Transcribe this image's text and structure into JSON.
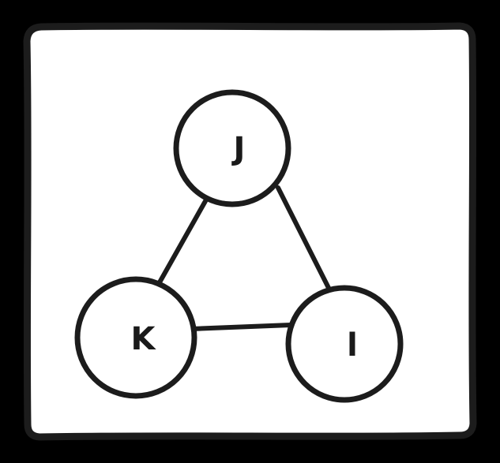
{
  "colors": {
    "background": "#000000",
    "card": "#ffffff",
    "card_border": "#1c1c1c",
    "stroke": "#1c1c1c",
    "text": "#1a1a1a"
  },
  "nodes": [
    {
      "id": "J",
      "label": "J"
    },
    {
      "id": "K",
      "label": "K"
    },
    {
      "id": "L",
      "label": "l"
    }
  ],
  "edges": [
    {
      "from": "J",
      "to": "K"
    },
    {
      "from": "J",
      "to": "L"
    },
    {
      "from": "K",
      "to": "L"
    }
  ]
}
